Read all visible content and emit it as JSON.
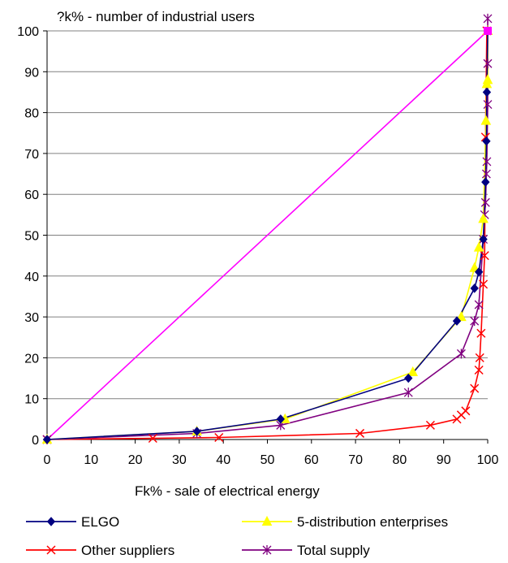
{
  "chart_data": {
    "type": "line",
    "title": "",
    "ylabel": "?k% - number of industrial users",
    "xlabel": "Fk% - sale of electrical energy",
    "xlim": [
      0,
      100
    ],
    "ylim": [
      0,
      100
    ],
    "x_ticks": [
      "0",
      "10",
      "20",
      "30",
      "40",
      "50",
      "60",
      "70",
      "80",
      "90",
      "100"
    ],
    "y_ticks": [
      "0",
      "10",
      "20",
      "30",
      "40",
      "50",
      "60",
      "70",
      "80",
      "90",
      "100"
    ],
    "grid": "horizontal",
    "legend_position": "bottom",
    "series": [
      {
        "name": "ELGO",
        "color": "#000080",
        "marker": "diamond",
        "points": [
          [
            0,
            0
          ],
          [
            34,
            2
          ],
          [
            53,
            5
          ],
          [
            82,
            15
          ],
          [
            93,
            29
          ],
          [
            97,
            37
          ],
          [
            98,
            41
          ],
          [
            99,
            49
          ],
          [
            99.5,
            63
          ],
          [
            99.7,
            73
          ],
          [
            99.8,
            85
          ],
          [
            100,
            100
          ]
        ]
      },
      {
        "name": "5-distribution enterprises",
        "color": "#ffff00",
        "marker": "triangle",
        "points": [
          [
            0,
            0
          ],
          [
            34,
            2
          ],
          [
            54,
            5
          ],
          [
            83,
            16.5
          ],
          [
            94,
            30
          ],
          [
            97,
            42
          ],
          [
            98,
            47
          ],
          [
            99,
            54
          ],
          [
            99.6,
            78
          ],
          [
            99.8,
            87
          ],
          [
            100,
            88
          ],
          [
            100,
            100
          ]
        ]
      },
      {
        "name": "Other suppliers",
        "color": "#ff0000",
        "marker": "x",
        "points": [
          [
            0,
            0
          ],
          [
            24,
            0.3
          ],
          [
            39,
            0.5
          ],
          [
            71,
            1.5
          ],
          [
            87,
            3.5
          ],
          [
            93,
            5
          ],
          [
            94,
            6
          ],
          [
            95,
            7
          ],
          [
            97,
            12.5
          ],
          [
            98,
            17
          ],
          [
            98.2,
            20
          ],
          [
            98.5,
            26
          ],
          [
            99,
            38
          ],
          [
            99.3,
            45
          ],
          [
            99.5,
            74
          ],
          [
            99.8,
            100
          ]
        ]
      },
      {
        "name": "Total supply",
        "color": "#800080",
        "marker": "star",
        "points": [
          [
            0,
            0
          ],
          [
            34,
            1.5
          ],
          [
            53,
            3.5
          ],
          [
            82,
            11.5
          ],
          [
            94,
            21
          ],
          [
            97,
            29
          ],
          [
            98,
            33
          ],
          [
            99,
            49
          ],
          [
            99.3,
            55
          ],
          [
            99.5,
            58
          ],
          [
            99.7,
            65
          ],
          [
            99.8,
            68
          ],
          [
            100,
            82
          ],
          [
            100,
            92
          ],
          [
            100,
            103
          ]
        ]
      },
      {
        "name": "",
        "color": "#ff00ff",
        "marker": "none",
        "points": [
          [
            0,
            0
          ],
          [
            100,
            100
          ]
        ]
      }
    ]
  }
}
